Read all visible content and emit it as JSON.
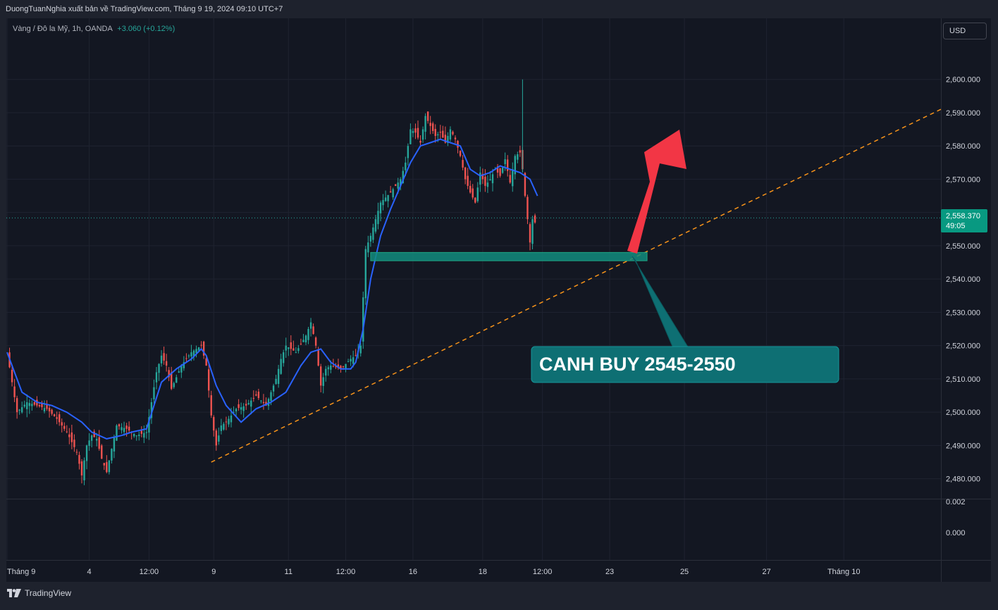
{
  "header": {
    "publisher_line": "DuongTuanNghia xuất bản về TradingView.com, Tháng 9 19, 2024 09:10 UTC+7"
  },
  "legend": {
    "symbol": "Vàng / Đô la Mỹ, 1h, OANDA",
    "change": "+3.060 (+0.12%)"
  },
  "currency_button": "USD",
  "price_tag": {
    "price": "2,558.370",
    "countdown": "49:05"
  },
  "indicator_scale": [
    "0.002",
    "0.000"
  ],
  "annotation": {
    "text": "CANH BUY 2545-2550"
  },
  "footer": {
    "brand": "TradingView"
  },
  "colors": {
    "background": "#131722",
    "bull": "#26a69a",
    "bear": "#ef5350",
    "ema": "#2962ff",
    "trendline": "#f7931a",
    "zone": "#128c7e",
    "label_bg": "#0e6f73",
    "up_arrow": "#f23645"
  },
  "chart_data": {
    "type": "line",
    "ylim": [
      2474,
      2612
    ],
    "xlim": [
      0,
      375
    ],
    "yticks": [
      2600,
      2590,
      2580,
      2570,
      2560,
      2550,
      2540,
      2530,
      2520,
      2510,
      2500,
      2490,
      2480
    ],
    "ytick_labels": [
      "2,600.000",
      "2,590.000",
      "2,580.000",
      "2,570.000",
      "2,560.000",
      "2,550.000",
      "2,540.000",
      "2,530.000",
      "2,520.000",
      "2,510.000",
      "2,500.000",
      "2,490.000",
      "2,480.000"
    ],
    "xticks": [
      {
        "label": "Tháng 9",
        "x": 0
      },
      {
        "label": "4",
        "x": 33
      },
      {
        "label": "12:00",
        "x": 57
      },
      {
        "label": "9",
        "x": 83
      },
      {
        "label": "11",
        "x": 113
      },
      {
        "label": "12:00",
        "x": 136
      },
      {
        "label": "16",
        "x": 163
      },
      {
        "label": "18",
        "x": 191
      },
      {
        "label": "12:00",
        "x": 215
      },
      {
        "label": "23",
        "x": 242
      },
      {
        "label": "25",
        "x": 272
      },
      {
        "label": "27",
        "x": 305
      },
      {
        "label": "Tháng 10",
        "x": 336
      }
    ],
    "series": [
      {
        "name": "",
        "type": "line",
        "x": [
          0,
          6,
          12,
          18,
          24,
          30,
          34,
          40,
          46,
          50,
          56,
          62,
          68,
          74,
          78,
          80,
          84,
          88,
          94,
          100,
          106,
          112,
          118,
          122,
          126,
          130,
          134,
          138,
          140,
          143,
          146,
          150,
          154,
          158,
          162,
          166,
          170,
          174,
          178,
          182,
          186,
          190,
          194,
          198,
          202,
          206,
          210,
          213
        ],
        "y": [
          2518,
          2506,
          2503,
          2502,
          2500,
          2497,
          2494,
          2492,
          2493,
          2494,
          2495,
          2509,
          2513,
          2516,
          2519,
          2517,
          2508,
          2502,
          2497,
          2501,
          2503,
          2506,
          2514,
          2518,
          2519,
          2515,
          2513,
          2513,
          2515,
          2525,
          2540,
          2553,
          2561,
          2568,
          2575,
          2580,
          2581,
          2582,
          2581,
          2580,
          2573,
          2571,
          2572,
          2574,
          2573,
          2572,
          2570,
          2565
        ]
      },
      {
        "name": "",
        "type": "candles_sampled",
        "x": [
          0,
          4,
          8,
          12,
          16,
          20,
          24,
          28,
          30,
          32,
          34,
          36,
          38,
          40,
          44,
          48,
          52,
          56,
          60,
          62,
          64,
          66,
          70,
          74,
          78,
          80,
          82,
          84,
          86,
          88,
          92,
          96,
          100,
          104,
          108,
          110,
          112,
          116,
          120,
          122,
          124,
          126,
          128,
          130,
          134,
          138,
          140,
          142,
          144,
          146,
          150,
          154,
          158,
          160,
          162,
          164,
          166,
          168,
          170,
          172,
          174,
          176,
          178,
          180,
          182,
          184,
          186,
          188,
          190,
          192,
          194,
          196,
          198,
          200,
          202,
          204,
          206,
          207,
          208,
          210,
          211,
          212
        ],
        "y": [
          2518,
          2500,
          2503,
          2502,
          2501,
          2498,
          2494,
          2488,
          2481,
          2490,
          2493,
          2492,
          2486,
          2482,
          2496,
          2495,
          2493,
          2494,
          2512,
          2517,
          2514,
          2507,
          2514,
          2518,
          2520,
          2514,
          2499,
          2490,
          2496,
          2497,
          2501,
          2502,
          2505,
          2502,
          2510,
          2516,
          2520,
          2518,
          2523,
          2527,
          2520,
          2508,
          2513,
          2514,
          2513,
          2516,
          2517,
          2520,
          2549,
          2553,
          2563,
          2566,
          2570,
          2575,
          2585,
          2584,
          2581,
          2589,
          2586,
          2583,
          2584,
          2581,
          2585,
          2582,
          2577,
          2570,
          2566,
          2563,
          2572,
          2568,
          2570,
          2573,
          2571,
          2576,
          2569,
          2577,
          2578,
          2573,
          2565,
          2551,
          2558,
          2557
        ]
      },
      {
        "name": "",
        "type": "trendline",
        "x": [
          82,
          375
        ],
        "y": [
          2485,
          2591
        ]
      },
      {
        "name": "",
        "type": "zone",
        "x": [
          146,
          257
        ],
        "y": [
          2545.5,
          2548
        ]
      }
    ],
    "grid": true,
    "current_price": 2558.37
  }
}
